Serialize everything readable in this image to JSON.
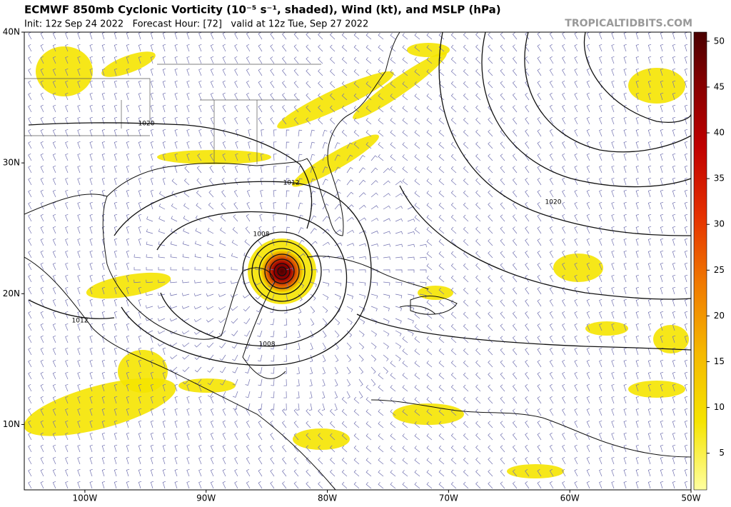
{
  "header": {
    "title": "ECMWF 850mb Cyclonic Vorticity (10⁻⁵ s⁻¹, shaded), Wind (kt), and MSLP (hPa)",
    "subtitle": "Init: 12z Sep 24 2022   Forecast Hour: [72]   valid at 12z Tue, Sep 27 2022",
    "source": "TROPICALTIDBITS.COM"
  },
  "map": {
    "lonlim": [
      -105,
      -50
    ],
    "latlim": [
      5,
      40
    ],
    "lon_ticks": [
      {
        "value": -100,
        "label": "100W"
      },
      {
        "value": -90,
        "label": "90W"
      },
      {
        "value": -80,
        "label": "80W"
      },
      {
        "value": -70,
        "label": "70W"
      },
      {
        "value": -60,
        "label": "60W"
      },
      {
        "value": -50,
        "label": "50W"
      }
    ],
    "lat_ticks": [
      {
        "value": 40,
        "label": "40N"
      },
      {
        "value": 30,
        "label": "30N"
      },
      {
        "value": 20,
        "label": "20N"
      },
      {
        "value": 10,
        "label": "10N"
      }
    ],
    "isobar_labels": [
      "1020",
      "1012",
      "1008",
      "1012",
      "1008",
      "1020"
    ]
  },
  "colorbar": {
    "range": [
      1,
      51
    ],
    "ticks": [
      5,
      10,
      15,
      20,
      25,
      30,
      35,
      40,
      45,
      50
    ]
  }
}
